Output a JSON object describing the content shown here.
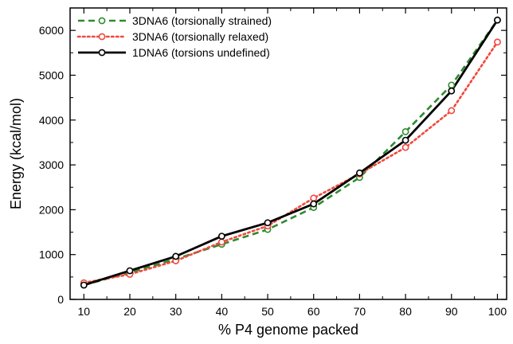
{
  "chart_data": {
    "type": "line",
    "title": "",
    "xlabel": "% P4 genome packed",
    "ylabel": "Energy (kcal/mol)",
    "xlim": [
      7,
      102
    ],
    "ylim": [
      0,
      6500
    ],
    "x": [
      10,
      20,
      30,
      40,
      50,
      60,
      70,
      80,
      90,
      100
    ],
    "xticks": [
      10,
      20,
      30,
      40,
      50,
      60,
      70,
      80,
      90,
      100
    ],
    "yticks": [
      0,
      1000,
      2000,
      3000,
      4000,
      5000,
      6000
    ],
    "grid": false,
    "legend_position": "top-left",
    "series": [
      {
        "name": "3DNA6 (torsionally strained)",
        "color": "#2e8b2e",
        "line_style": "dashed",
        "marker": "open-circle",
        "values": [
          320,
          600,
          900,
          1230,
          1560,
          2050,
          2720,
          3740,
          4780,
          6230
        ]
      },
      {
        "name": "3DNA6 (torsionally relaxed)",
        "color": "#f0483c",
        "line_style": "dotted",
        "marker": "open-circle",
        "values": [
          370,
          560,
          860,
          1280,
          1640,
          2260,
          2800,
          3390,
          4210,
          5740
        ]
      },
      {
        "name": "1DNA6 (torsions undefined)",
        "color": "#000000",
        "line_style": "solid",
        "marker": "open-circle",
        "values": [
          320,
          640,
          960,
          1410,
          1710,
          2130,
          2820,
          3550,
          4650,
          6230
        ]
      }
    ]
  }
}
